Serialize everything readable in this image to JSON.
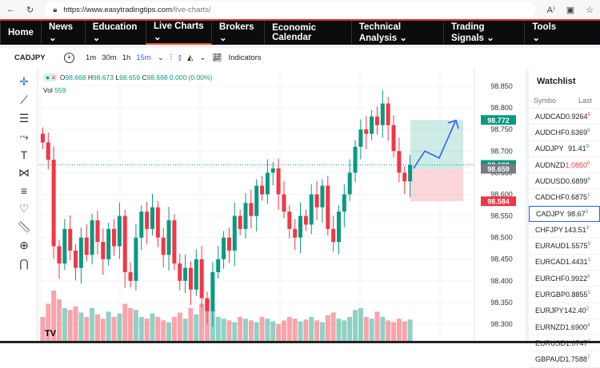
{
  "browser": {
    "url_host": "https://www.easytradingtips.com",
    "url_path": "/live-charts/"
  },
  "nav": [
    {
      "label": "Home"
    },
    {
      "label": "News ⌄"
    },
    {
      "label": "Education ⌄"
    },
    {
      "label": "Live Charts ⌄",
      "active": true
    },
    {
      "label": "Brokers ⌄"
    },
    {
      "label": "Economic Calendar"
    },
    {
      "label": "Technical Analysis ⌄"
    },
    {
      "label": "Trading Signals ⌄"
    },
    {
      "label": "Tools ⌄"
    }
  ],
  "toolbar": {
    "symbol": "CADJPY",
    "intervals": [
      "1m",
      "30m",
      "1h",
      "15m"
    ],
    "active_interval": "15m",
    "indicators": "Indicators"
  },
  "legend": {
    "o_label": "O",
    "o": "98.668",
    "h_label": "H",
    "h": "98.673",
    "l_label": "L",
    "l": "98.659",
    "c_label": "C",
    "c": "98.668",
    "change": "0.000 (0.00%)",
    "vol_label": "Vol",
    "vol": "559"
  },
  "price_labels": {
    "target": "98.772",
    "current": "98.668",
    "entry": "98.659",
    "stop": "98.584",
    "volume": "559"
  },
  "colors": {
    "up": "#089981",
    "down": "#f23645",
    "accent": "#2962ff"
  },
  "chart_data": {
    "type": "candlestick",
    "symbol": "CADJPY",
    "interval": "15m",
    "y_ticks": [
      "98.850",
      "98.800",
      "98.750",
      "98.700",
      "98.650",
      "98.600",
      "98.550",
      "98.500",
      "98.450",
      "98.400",
      "98.350",
      "98.300"
    ],
    "ylim": [
      98.29,
      98.86
    ],
    "closes": [
      98.72,
      98.68,
      98.48,
      98.44,
      98.52,
      98.47,
      98.43,
      98.5,
      98.46,
      98.54,
      98.49,
      98.45,
      98.52,
      98.48,
      98.55,
      98.42,
      98.4,
      98.5,
      98.56,
      98.52,
      98.57,
      98.5,
      98.46,
      98.54,
      98.44,
      98.4,
      98.43,
      98.38,
      98.45,
      98.36,
      98.33,
      98.42,
      98.45,
      98.5,
      98.47,
      98.55,
      98.52,
      98.58,
      98.55,
      98.62,
      98.6,
      98.65,
      98.66,
      98.6,
      98.56,
      98.52,
      98.5,
      98.55,
      98.53,
      98.6,
      98.57,
      98.62,
      98.52,
      98.49,
      98.56,
      98.6,
      98.65,
      98.71,
      98.75,
      98.74,
      98.78,
      98.76,
      98.81,
      98.76,
      98.7,
      98.65,
      98.63,
      98.668
    ],
    "volumes": [
      30,
      45,
      60,
      50,
      40,
      38,
      42,
      35,
      30,
      40,
      33,
      28,
      36,
      30,
      34,
      45,
      40,
      38,
      30,
      28,
      34,
      30,
      26,
      24,
      30,
      35,
      28,
      40,
      33,
      45,
      50,
      38,
      30,
      28,
      26,
      24,
      30,
      28,
      26,
      24,
      30,
      28,
      25,
      22,
      26,
      30,
      28,
      25,
      27,
      30,
      26,
      24,
      32,
      35,
      28,
      26,
      30,
      38,
      40,
      30,
      28,
      36,
      30,
      26,
      24,
      28,
      25,
      27
    ],
    "position": {
      "entry": 98.659,
      "target": 98.772,
      "stop": 98.584
    }
  },
  "watchlist": {
    "title": "Watchlist",
    "col_symbol": "Symbo",
    "col_last": "Last",
    "rows": [
      {
        "s": "AUDCAD",
        "p": "0.9264",
        "d": "8",
        "c": "dn"
      },
      {
        "s": "AUDCHF",
        "p": "0.6369",
        "d": "9",
        "c": "up"
      },
      {
        "s": "AUDJPY",
        "p": "91.41",
        "d": "9",
        "c": "up"
      },
      {
        "s": "AUDNZD",
        "p": "1.0850",
        "d": "0",
        "c": "dn",
        "red": true
      },
      {
        "s": "AUDUSD",
        "p": "0.6899",
        "d": "6",
        "c": "up"
      },
      {
        "s": "CADCHF",
        "p": "0.6875",
        "d": "1",
        "c": "up"
      },
      {
        "s": "CADJPY",
        "p": "98.67",
        "d": "0",
        "c": "up",
        "sel": true
      },
      {
        "s": "CHFJPY",
        "p": "143.51",
        "d": "3",
        "c": "up"
      },
      {
        "s": "EURAUD",
        "p": "1.5575",
        "d": "9",
        "c": "dn"
      },
      {
        "s": "EURCAD",
        "p": "1.4431",
        "d": "3",
        "c": "dn"
      },
      {
        "s": "EURCHF",
        "p": "0.9922",
        "d": "6",
        "c": "up"
      },
      {
        "s": "EURGBP",
        "p": "0.8855",
        "d": "3",
        "c": "dn"
      },
      {
        "s": "EURJPY",
        "p": "142.40",
        "d": "2",
        "c": "up"
      },
      {
        "s": "EURNZD",
        "p": "1.6900",
        "d": "4",
        "c": "dn"
      },
      {
        "s": "EURUSD",
        "p": "1.0747",
        "d": "2",
        "c": "up"
      },
      {
        "s": "GBPAUD",
        "p": "1.7588",
        "d": "7",
        "c": "up"
      }
    ]
  }
}
